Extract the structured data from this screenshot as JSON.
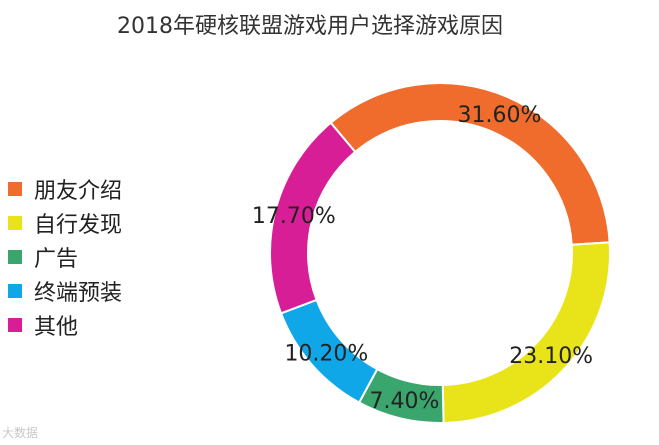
{
  "chart_data": {
    "type": "pie",
    "title": "2018年硬核联盟游戏用户选择游戏原因",
    "categories": [
      "朋友介绍",
      "自行发现",
      "广告",
      "终端预装",
      "其他"
    ],
    "values": [
      31.6,
      23.1,
      7.4,
      10.2,
      17.7
    ],
    "value_labels": [
      "31.60%",
      "23.10%",
      "7.40%",
      "10.20%",
      "17.70%"
    ],
    "colors": [
      "#ef6c2c",
      "#e9e41a",
      "#3aa56d",
      "#10a7e8",
      "#d81e97"
    ],
    "donut": true,
    "legend_position": "left"
  },
  "watermark": "大数据"
}
